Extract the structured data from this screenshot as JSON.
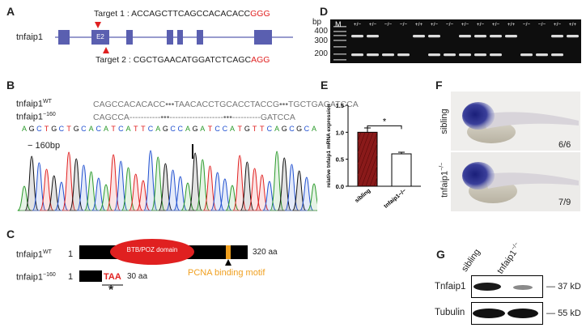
{
  "panels": {
    "A": "A",
    "B": "B",
    "C": "C",
    "D": "D",
    "E": "E",
    "F": "F",
    "G": "G"
  },
  "panelA": {
    "gene": "tnfaip1",
    "exon_label": "E2",
    "target1_prefix": "Target 1 : ACCAGCTTCAGCCACACACC",
    "target1_pam": "GGG",
    "target2_prefix": "Target 2 : CGCTGAACATGGATCTCAGC",
    "target2_pam": "AGG"
  },
  "panelB": {
    "wt_label": "tnfaip1",
    "wt_sup": "WT",
    "mut_label": "tnfaip1",
    "mut_sup": "−160",
    "wt_seq": "CAGCCACACACC•••TAACACCTGCACCTACCG•••TGCTGAGATCCA",
    "mut_seq": "CAGCCA-----------•••-------------------•••----------GATCCA",
    "chrom_bases": "AGCTGCTGCACATCATTCAGCCAGATCCATGTTCAGCGCA",
    "deletion": "− 160bp"
  },
  "panelC": {
    "wt_label": "tnfaip1",
    "wt_sup": "WT",
    "wt_start": "1",
    "domain": "BTB/POZ domain",
    "wt_end": "320 aa",
    "motif": "PCNA binding motif",
    "mut_label": "tnfaip1",
    "mut_sup": "−160",
    "mut_start": "1",
    "stop": "TAA",
    "mut_end": "30 aa",
    "star": "*",
    "colors": {
      "bar": "#000000",
      "domain": "#e02020",
      "motif": "#f0a020"
    }
  },
  "panelD": {
    "bp": "bp",
    "marker": "M",
    "ticks": [
      "400",
      "300",
      "200"
    ],
    "lanes": [
      "+/−",
      "+/−",
      "−/−",
      "−/−",
      "+/+",
      "+/−",
      "−/−",
      "+/−",
      "+/−",
      "+/−",
      "+/+",
      "−/−",
      "−/−",
      "+/−",
      "+/+"
    ]
  },
  "panelE": {
    "ylabel": "relative tnfaip1 mRNA expression",
    "yticks": [
      "0.0",
      "0.5",
      "1.0",
      "1.5"
    ],
    "sig": "*",
    "cat1": "sibling",
    "cat2": "tnfaip1",
    "cat2_sup": "−/−"
  },
  "chart_data": {
    "type": "bar",
    "categories": [
      "sibling",
      "tnfaip1−/−"
    ],
    "values": [
      1.0,
      0.6
    ],
    "errors": [
      0.08,
      0.03
    ],
    "ylabel": "relative tnfaip1 mRNA expression",
    "ylim": [
      0,
      1.5
    ],
    "annotation": "*"
  },
  "panelF": {
    "top_label": "sibling",
    "top_ratio": "6/6",
    "bot_label": "tnfaip1",
    "bot_sup": "−/−",
    "bot_ratio": "7/9"
  },
  "panelG": {
    "col1": "sibling",
    "col2": "tnfaip1",
    "col2_sup": "−/−",
    "row1": "Tnfaip1",
    "row1_size": "37 kD",
    "row2": "Tubulin",
    "row2_size": "55 kD"
  }
}
